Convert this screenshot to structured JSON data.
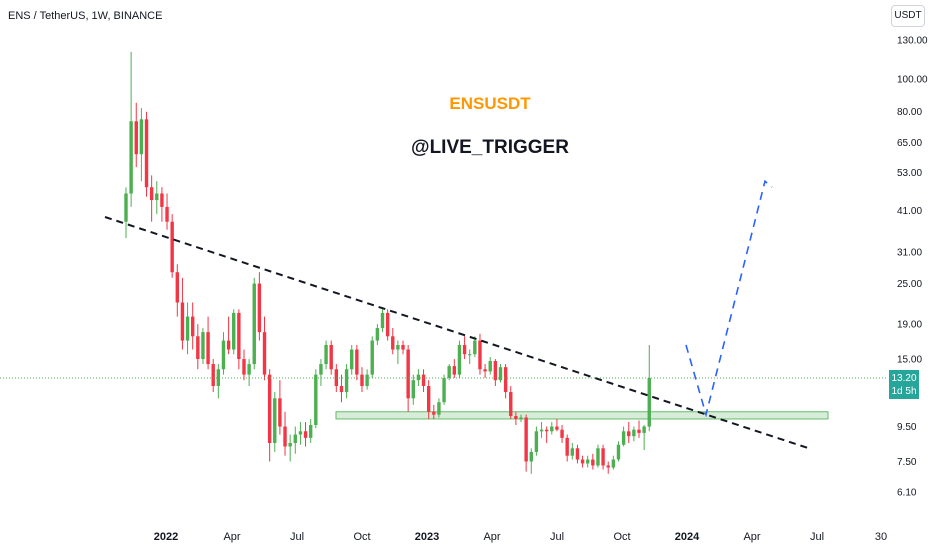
{
  "header": {
    "symbol_title": "ENS / TetherUS, 1W, BINANCE",
    "currency_button": "USDT"
  },
  "overlay": {
    "ticker": "ENSUSDT",
    "ticker_color": "#ff9800",
    "author": "@LIVE_TRIGGER",
    "author_color": "#131722"
  },
  "price_badge": {
    "price": "13.20",
    "countdown": "1d 5h",
    "color": "#26a69a"
  },
  "colors": {
    "up": "#4caf50",
    "down": "#f23645",
    "zone_fill": "#c8e6c9",
    "zone_border": "#66bb6a",
    "trendline": "#131722",
    "projection": "#2962ff",
    "current_price_line": "#4caf50"
  },
  "chart_data": {
    "type": "candlestick",
    "symbol": "ENS / TetherUS",
    "interval": "1W",
    "exchange": "BINANCE",
    "y_scale": "log",
    "y_ticks": [
      130.0,
      100.0,
      80.0,
      65.0,
      53.0,
      41.0,
      31.0,
      25.0,
      19.0,
      15.0,
      9.5,
      7.5,
      6.1
    ],
    "x_ticks": [
      "2022",
      "Apr",
      "Jul",
      "Oct",
      "2023",
      "Apr",
      "Jul",
      "Oct",
      "2024",
      "Apr",
      "Jul",
      "30"
    ],
    "last_price": 13.2,
    "candles_ohlc": [
      [
        38,
        48,
        34,
        46
      ],
      [
        46,
        120,
        42,
        75
      ],
      [
        75,
        85,
        55,
        60
      ],
      [
        60,
        82,
        50,
        76
      ],
      [
        76,
        80,
        45,
        48
      ],
      [
        48,
        52,
        38,
        44
      ],
      [
        44,
        50,
        40,
        46
      ],
      [
        46,
        48,
        38,
        42
      ],
      [
        42,
        46,
        36,
        38
      ],
      [
        38,
        40,
        26,
        27
      ],
      [
        27,
        28.5,
        20,
        22
      ],
      [
        22,
        26,
        16,
        17
      ],
      [
        17,
        22,
        15.5,
        20
      ],
      [
        20,
        22,
        16,
        17.5
      ],
      [
        17.5,
        19,
        14,
        15
      ],
      [
        15,
        18.5,
        14.5,
        18
      ],
      [
        18,
        20,
        14,
        14.5
      ],
      [
        14.5,
        15,
        12,
        12.5
      ],
      [
        12.5,
        14.5,
        11.5,
        14
      ],
      [
        14,
        18,
        13.5,
        17
      ],
      [
        17,
        20,
        15.5,
        16
      ],
      [
        16,
        21,
        15.5,
        20.5
      ],
      [
        20.5,
        21,
        14,
        15
      ],
      [
        15,
        16,
        13,
        13.5
      ],
      [
        13.5,
        15,
        12.5,
        14.5
      ],
      [
        14.5,
        26,
        14,
        25
      ],
      [
        25,
        27,
        17,
        18
      ],
      [
        18,
        20,
        13,
        13.5
      ],
      [
        13.5,
        14,
        7.5,
        8.5
      ],
      [
        8.5,
        12,
        8,
        11.5
      ],
      [
        11.5,
        13,
        9,
        9.5
      ],
      [
        9.5,
        10.5,
        7.8,
        8.3
      ],
      [
        8.3,
        9,
        7.5,
        8.5
      ],
      [
        8.5,
        9.5,
        7.9,
        9
      ],
      [
        9,
        9.8,
        8.4,
        9.2
      ],
      [
        9.2,
        9.8,
        8.3,
        8.8
      ],
      [
        8.8,
        10,
        8.5,
        9.6
      ],
      [
        9.6,
        14,
        9.4,
        13.5
      ],
      [
        13.5,
        15,
        12.5,
        14.5
      ],
      [
        14.5,
        17,
        14,
        16.5
      ],
      [
        16.5,
        17,
        13.5,
        14
      ],
      [
        14,
        14.5,
        12,
        12.5
      ],
      [
        12.5,
        13.5,
        11.2,
        12
      ],
      [
        12,
        14.5,
        11.5,
        14
      ],
      [
        14,
        16.5,
        13.5,
        16
      ],
      [
        16,
        16.5,
        13,
        13.5
      ],
      [
        13.5,
        14.2,
        12,
        12.5
      ],
      [
        12.5,
        14,
        12.2,
        13.5
      ],
      [
        13.5,
        17.5,
        13.2,
        17
      ],
      [
        17,
        19,
        16.5,
        18.5
      ],
      [
        18.5,
        21,
        18,
        20.5
      ],
      [
        20.5,
        21,
        17,
        17.5
      ],
      [
        17.5,
        18.5,
        15.5,
        16
      ],
      [
        16,
        17,
        14.5,
        16.5
      ],
      [
        16.5,
        17,
        15.5,
        16
      ],
      [
        16,
        16.5,
        10.5,
        11.5
      ],
      [
        11.5,
        13.5,
        11,
        13
      ],
      [
        13,
        14,
        12.5,
        13.5
      ],
      [
        13.5,
        14,
        12,
        12.5
      ],
      [
        12.5,
        13,
        10,
        10.5
      ],
      [
        10.5,
        11,
        10,
        10.3
      ],
      [
        10.3,
        11.5,
        10.1,
        11.2
      ],
      [
        11.2,
        13.5,
        11,
        13.2
      ],
      [
        13.2,
        14.5,
        13,
        14.3
      ],
      [
        14.3,
        15,
        13.2,
        13.5
      ],
      [
        13.5,
        17,
        13.2,
        16.5
      ],
      [
        16.5,
        17.5,
        15,
        15.5
      ],
      [
        15.5,
        16,
        14.5,
        15.5
      ],
      [
        15.5,
        17.5,
        15.2,
        17
      ],
      [
        17,
        17.8,
        13.5,
        14
      ],
      [
        14,
        14.5,
        13.2,
        13.8
      ],
      [
        13.8,
        15.2,
        13.5,
        14.8
      ],
      [
        14.8,
        15,
        12.5,
        13
      ],
      [
        13,
        14.5,
        12.8,
        14.2
      ],
      [
        14.2,
        14.5,
        11.5,
        12
      ],
      [
        12,
        12.5,
        10,
        10.2
      ],
      [
        10.2,
        10.5,
        9.6,
        10
      ],
      [
        10,
        10.3,
        9.8,
        10.1
      ],
      [
        10.1,
        10.3,
        7,
        7.5
      ],
      [
        7.5,
        8.2,
        6.9,
        8
      ],
      [
        8,
        9.5,
        7.8,
        9.2
      ],
      [
        9.2,
        9.8,
        8.8,
        9.3
      ],
      [
        9.3,
        9.5,
        8.5,
        9.2
      ],
      [
        9.2,
        9.8,
        9,
        9.5
      ],
      [
        9.5,
        10,
        9.2,
        9.3
      ],
      [
        9.3,
        9.6,
        8.5,
        8.8
      ],
      [
        8.8,
        9,
        7.5,
        7.8
      ],
      [
        7.8,
        8.5,
        7.6,
        8.2
      ],
      [
        8.2,
        8.4,
        7.4,
        7.6
      ],
      [
        7.6,
        7.8,
        7.2,
        7.4
      ],
      [
        7.4,
        7.8,
        7.2,
        7.6
      ],
      [
        7.6,
        7.9,
        7.1,
        7.3
      ],
      [
        7.3,
        8.4,
        7.2,
        8.2
      ],
      [
        8.2,
        8.4,
        7.1,
        7.3
      ],
      [
        7.3,
        7.5,
        6.9,
        7.2
      ],
      [
        7.2,
        7.8,
        7.1,
        7.6
      ],
      [
        7.6,
        8.6,
        7.5,
        8.4
      ],
      [
        8.4,
        9.5,
        8.3,
        9.2
      ],
      [
        9.2,
        9.8,
        8.5,
        8.9
      ],
      [
        8.9,
        9.5,
        8.6,
        9.3
      ],
      [
        9.3,
        9.9,
        8.8,
        9.1
      ],
      [
        9.1,
        9.6,
        8.1,
        9.5
      ],
      [
        9.5,
        16.5,
        9.2,
        13.2
      ]
    ],
    "trendline": {
      "style": "dashed",
      "color": "#131722",
      "from": [
        "2021-11",
        40
      ],
      "to": [
        "2024-07",
        7.8
      ]
    },
    "support_zone": {
      "low": 10.0,
      "high": 10.5,
      "color": "#c8e6c9"
    },
    "projection_path": {
      "style": "dashed",
      "color": "#2962ff",
      "points": [
        13.8,
        10.3,
        13.8,
        50,
        51
      ]
    }
  }
}
